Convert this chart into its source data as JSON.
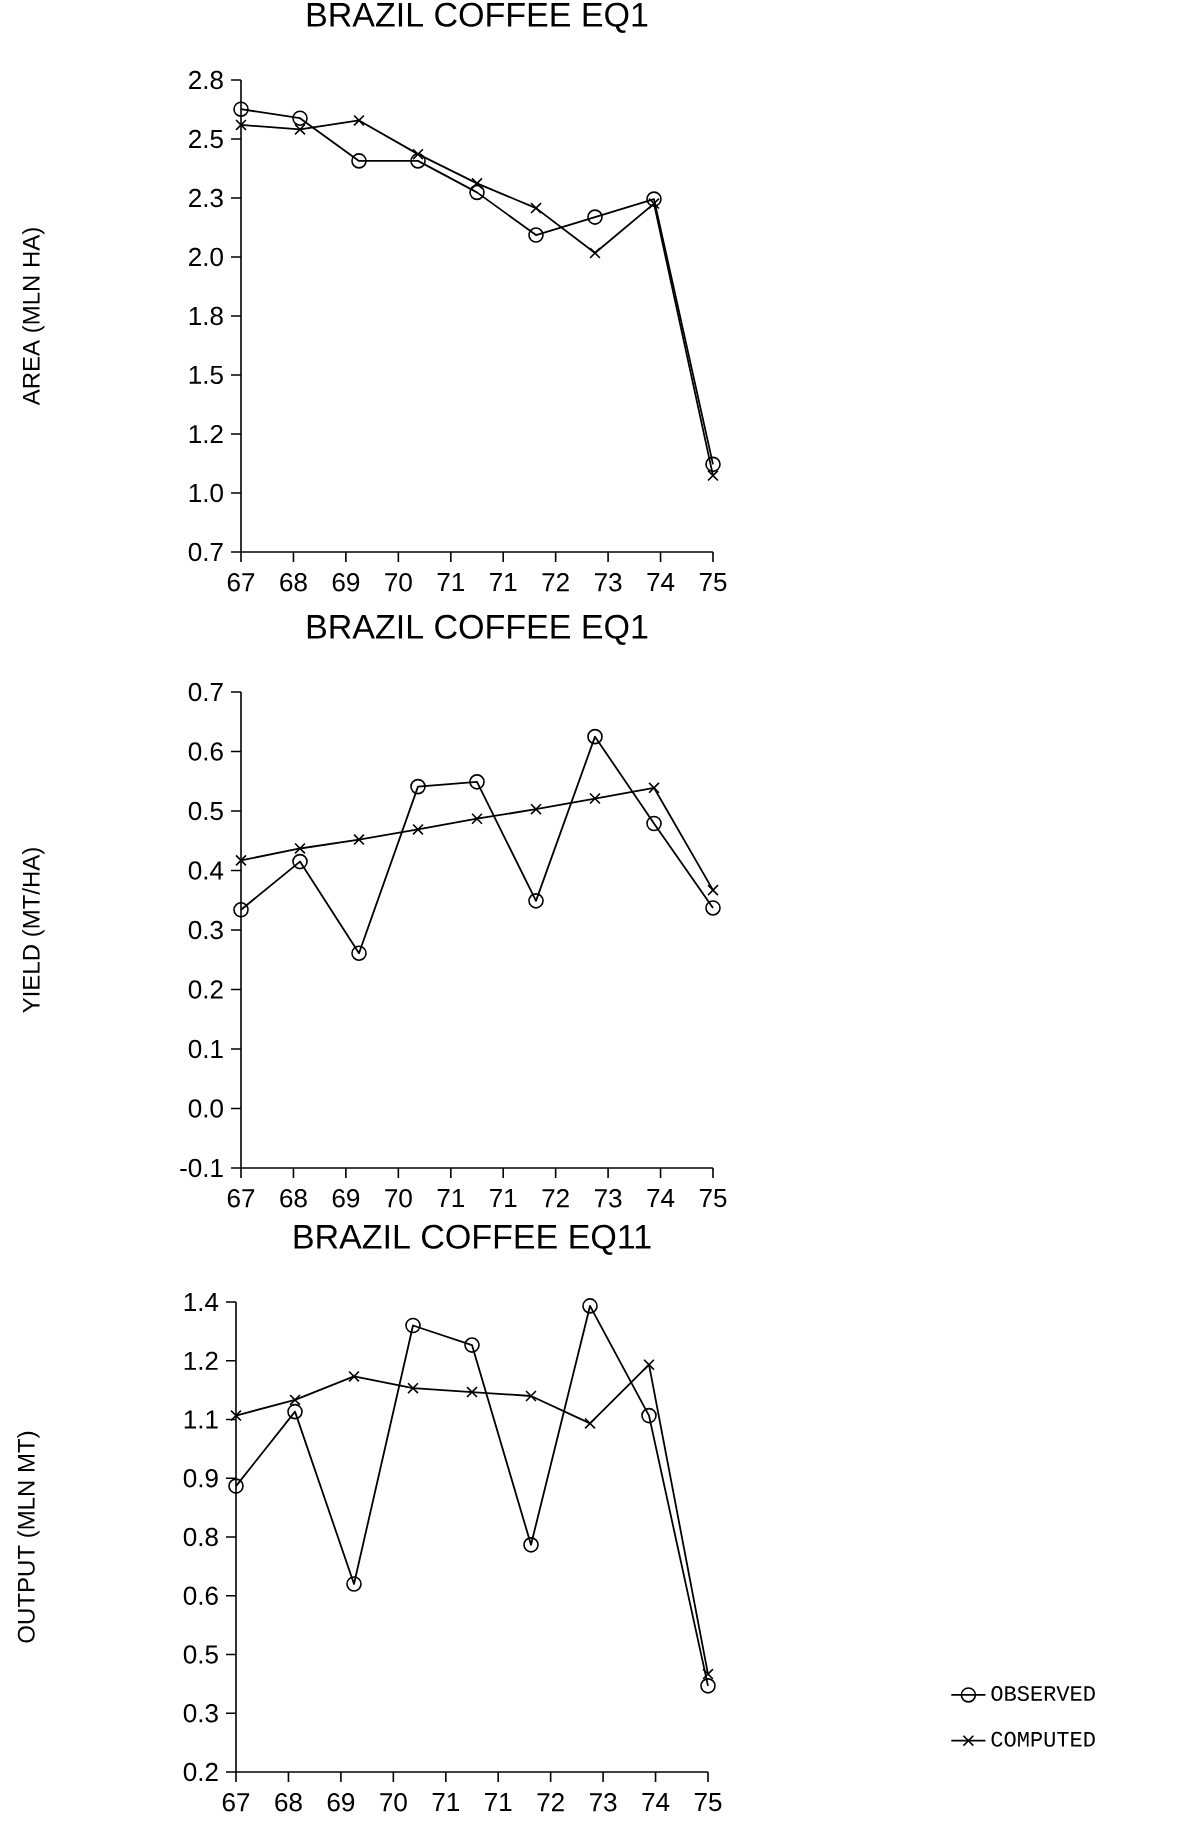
{
  "chart_data": [
    {
      "type": "line",
      "title": "BRAZIL COFFEE EQ1",
      "ylabel": "AREA (MLN HA)",
      "x": [
        67,
        68,
        69,
        70,
        71,
        72,
        73,
        74,
        75
      ],
      "xlim": [
        67,
        75
      ],
      "xticks": [
        67,
        {
          "value": 67.889,
          "label": "68"
        },
        {
          "value": 68.778,
          "label": "69"
        },
        {
          "value": 69.667,
          "label": "70"
        },
        {
          "value": 70.556,
          "label": "71"
        },
        {
          "value": 71.444,
          "label": "71"
        },
        {
          "value": 72.333,
          "label": "72"
        },
        {
          "value": 73.222,
          "label": "73"
        },
        {
          "value": 74.111,
          "label": "74"
        },
        75
      ],
      "ylim": [
        0.7,
        2.8
      ],
      "yticks": [
        0.7,
        {
          "value": 0.9625,
          "label": "1.0"
        },
        {
          "value": 1.225,
          "label": "1.2"
        },
        {
          "value": 1.4875,
          "label": "1.5"
        },
        {
          "value": 1.75,
          "label": "1.8"
        },
        {
          "value": 2.0125,
          "label": "2.0"
        },
        {
          "value": 2.275,
          "label": "2.3"
        },
        {
          "value": 2.5375,
          "label": "2.5"
        },
        2.8
      ],
      "grid": false,
      "legend": false,
      "line_style": "solid",
      "series": [
        {
          "color": "#000000",
          "marker": "circle",
          "values": [
            2.67,
            2.63,
            2.44,
            2.44,
            2.3,
            2.11,
            2.19,
            2.27,
            1.09
          ]
        },
        {
          "color": "#000000",
          "marker": "cross",
          "values": [
            2.6,
            2.58,
            2.62,
            2.47,
            2.34,
            2.23,
            2.03,
            2.25,
            1.04
          ]
        }
      ]
    },
    {
      "type": "line",
      "title": "BRAZIL COFFEE EQ1",
      "ylabel": "YIELD (MT/HA)",
      "x": [
        67,
        68,
        69,
        70,
        71,
        72,
        73,
        74,
        75
      ],
      "xlim": [
        67,
        75
      ],
      "xticks": [
        67,
        {
          "value": 67.889,
          "label": "68"
        },
        {
          "value": 68.778,
          "label": "69"
        },
        {
          "value": 69.667,
          "label": "70"
        },
        {
          "value": 70.556,
          "label": "71"
        },
        {
          "value": 71.444,
          "label": "71"
        },
        {
          "value": 72.333,
          "label": "72"
        },
        {
          "value": 73.222,
          "label": "73"
        },
        {
          "value": 74.111,
          "label": "74"
        },
        75
      ],
      "ylim": [
        -0.1,
        0.7
      ],
      "yticks": [
        -0.1,
        {
          "value": 0,
          "label": "0.0"
        },
        0.1,
        0.2,
        0.3,
        0.4,
        0.5,
        0.6,
        0.7
      ],
      "grid": false,
      "legend": false,
      "line_style": "solid",
      "series": [
        {
          "color": "#000000",
          "marker": "circle",
          "values": [
            0.334,
            0.415,
            0.261,
            0.541,
            0.549,
            0.349,
            0.625,
            0.479,
            0.337
          ]
        },
        {
          "color": "#000000",
          "marker": "cross",
          "values": [
            0.417,
            0.437,
            0.452,
            0.469,
            0.487,
            0.503,
            0.521,
            0.539,
            0.367
          ]
        }
      ]
    },
    {
      "type": "line",
      "title": "BRAZIL COFFEE EQ11",
      "ylabel": "OUTPUT (MLN MT)",
      "x": [
        67,
        68,
        69,
        70,
        71,
        72,
        73,
        74,
        75
      ],
      "xlim": [
        67,
        75
      ],
      "xticks": [
        67,
        {
          "value": 67.889,
          "label": "68"
        },
        {
          "value": 68.778,
          "label": "69"
        },
        {
          "value": 69.667,
          "label": "70"
        },
        {
          "value": 70.556,
          "label": "71"
        },
        {
          "value": 71.444,
          "label": "71"
        },
        {
          "value": 72.333,
          "label": "72"
        },
        {
          "value": 73.222,
          "label": "73"
        },
        {
          "value": 74.111,
          "label": "74"
        },
        75
      ],
      "ylim": [
        0.2,
        1.4
      ],
      "yticks": [
        0.2,
        {
          "value": 0.35,
          "label": "0.3"
        },
        0.5,
        {
          "value": 0.65,
          "label": "0.6"
        },
        0.8,
        {
          "value": 0.95,
          "label": "0.9"
        },
        1.1,
        {
          "value": 1.25,
          "label": "1.2"
        },
        1.4
      ],
      "grid": false,
      "legend": "bottom right",
      "line_style": "solid",
      "series": [
        {
          "name": "OBSERVED",
          "color": "#000000",
          "marker": "circle",
          "values": [
            0.93,
            1.12,
            0.68,
            1.34,
            1.29,
            0.78,
            1.39,
            1.11,
            0.42
          ]
        },
        {
          "name": "COMPUTED",
          "color": "#000000",
          "marker": "cross",
          "values": [
            1.11,
            1.15,
            1.21,
            1.18,
            1.17,
            1.16,
            1.09,
            1.24,
            0.45
          ]
        }
      ]
    }
  ]
}
